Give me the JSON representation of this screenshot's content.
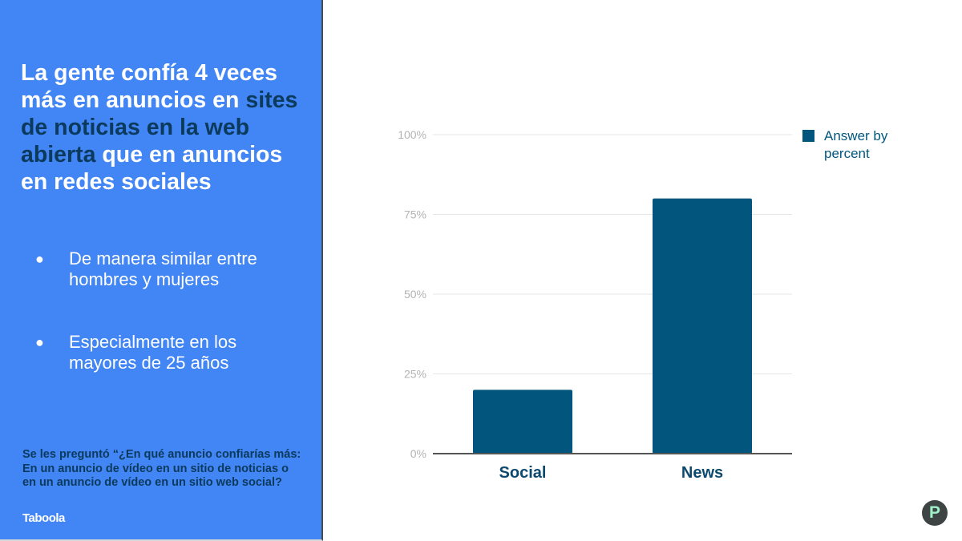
{
  "left_panel": {
    "headline": {
      "part1": "La gente confía 4 veces más en anuncios en ",
      "highlight": "sites de noticias en la web abierta",
      "part2": " que en anuncios en redes sociales"
    },
    "bullets": [
      "De manera similar entre hombres y mujeres",
      "Especialmente en los mayores de 25 años"
    ],
    "bullet_symbol": "●",
    "footnote": "Se les preguntó “¿En qué anuncio confiarías más: En un anuncio de vídeo en un sitio de noticias o en un anuncio de vídeo en un sitio web social?",
    "logo_text": "Taboola",
    "background_color": "#4285f4",
    "highlight_color": "#0b3a5c"
  },
  "chart_data": {
    "type": "bar",
    "categories": [
      "Social",
      "News"
    ],
    "series": [
      {
        "name": "Answer by percent",
        "values": [
          20,
          80
        ],
        "color": "#02567e"
      }
    ],
    "ylim": [
      0,
      100
    ],
    "yticks": [
      "0%",
      "25%",
      "50%",
      "75%",
      "100%"
    ],
    "ytick_values": [
      0,
      25,
      50,
      75,
      100
    ],
    "grid": true,
    "legend_position": "right",
    "title": "",
    "xlabel": "",
    "ylabel": ""
  },
  "badge": {
    "letter": "P",
    "icon": "p-badge-icon"
  }
}
